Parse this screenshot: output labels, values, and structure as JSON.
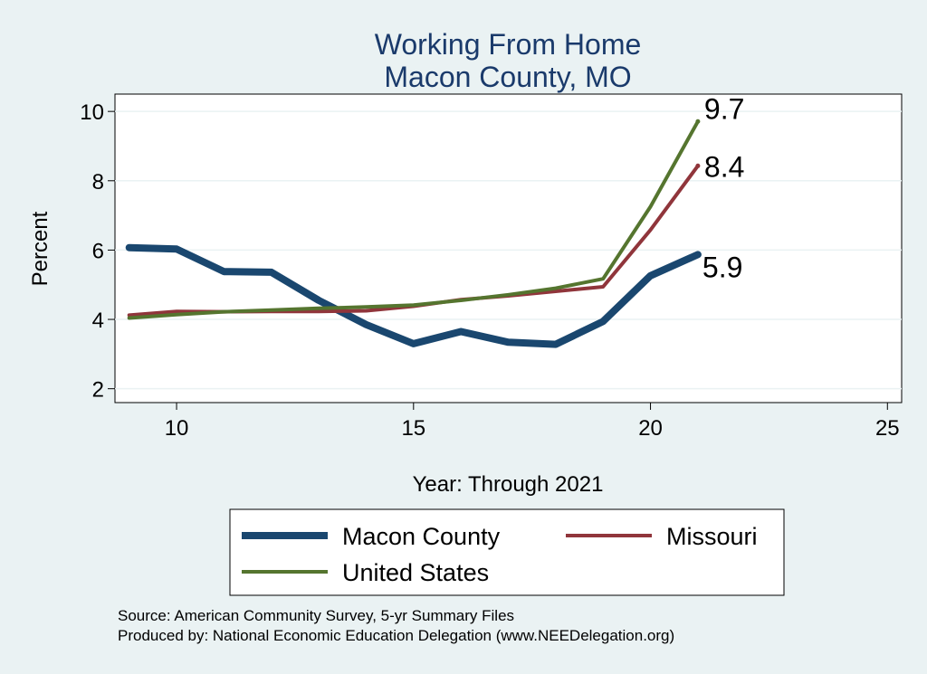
{
  "chart_data": {
    "type": "line",
    "title": "Working From Home",
    "subtitle": "Macon County, MO",
    "xlabel": "Year: Through 2021",
    "ylabel": "Percent",
    "xlim": [
      8.7,
      25.3
    ],
    "ylim": [
      1.6,
      10.5
    ],
    "x_ticks": [
      10,
      15,
      20,
      25
    ],
    "y_ticks": [
      2,
      4,
      6,
      8,
      10
    ],
    "grid": true,
    "legend_position": "bottom",
    "x": [
      9,
      10,
      11,
      12,
      13,
      14,
      15,
      16,
      17,
      18,
      19,
      20,
      21
    ],
    "series": [
      {
        "name": "Macon County",
        "color": "#1a476f",
        "values": [
          6.07,
          6.03,
          5.38,
          5.36,
          4.55,
          3.85,
          3.3,
          3.65,
          3.34,
          3.28,
          3.94,
          5.26,
          5.87
        ],
        "end_label": "5.9"
      },
      {
        "name": "Missouri",
        "color": "#90353b",
        "values": [
          4.12,
          4.23,
          4.22,
          4.23,
          4.23,
          4.25,
          4.38,
          4.57,
          4.68,
          4.81,
          4.94,
          6.58,
          8.43
        ],
        "end_label": "8.4"
      },
      {
        "name": "United States",
        "color": "#55752f",
        "values": [
          4.04,
          4.14,
          4.22,
          4.27,
          4.32,
          4.36,
          4.41,
          4.55,
          4.71,
          4.9,
          5.17,
          7.25,
          9.71
        ],
        "end_label": "9.7"
      }
    ]
  },
  "source_lines": [
    "Source: American Community Survey, 5-yr Summary Files",
    "Produced by: National Economic Education Delegation (www.NEEDelegation.org)"
  ]
}
